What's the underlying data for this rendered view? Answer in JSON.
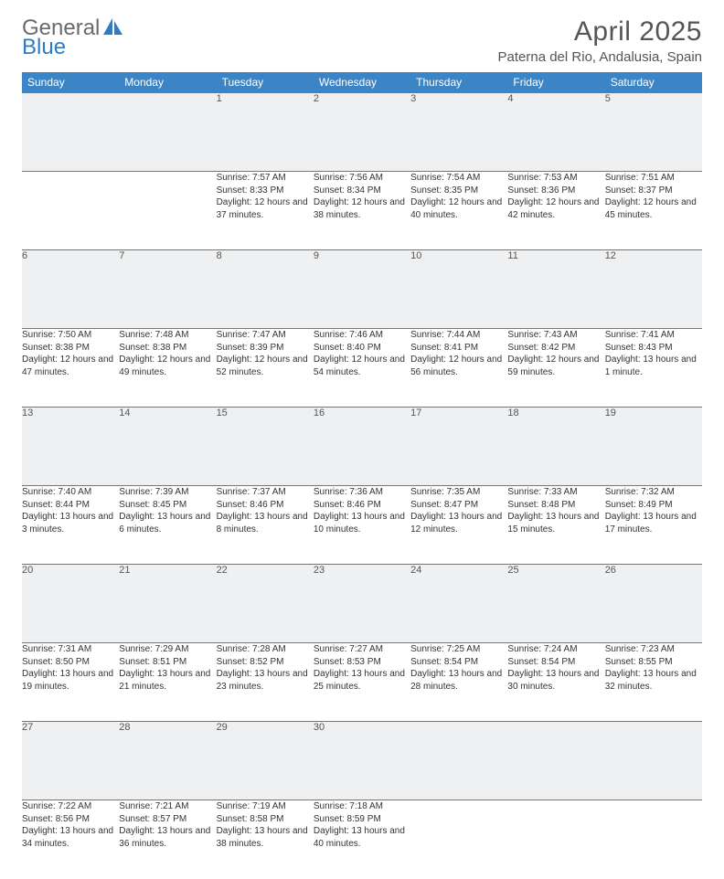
{
  "brand": {
    "word1": "General",
    "word2": "Blue"
  },
  "title": "April 2025",
  "location": "Paterna del Rio, Andalusia, Spain",
  "colors": {
    "header_bg": "#3b85c6",
    "header_text": "#ffffff",
    "daynum_bg": "#eef0f2",
    "rule": "#3b85c6",
    "body_bg": "#ffffff"
  },
  "weekdays": [
    "Sunday",
    "Monday",
    "Tuesday",
    "Wednesday",
    "Thursday",
    "Friday",
    "Saturday"
  ],
  "weeks": [
    [
      null,
      null,
      {
        "n": "1",
        "sr": "7:57 AM",
        "ss": "8:33 PM",
        "dl": "12 hours and 37 minutes."
      },
      {
        "n": "2",
        "sr": "7:56 AM",
        "ss": "8:34 PM",
        "dl": "12 hours and 38 minutes."
      },
      {
        "n": "3",
        "sr": "7:54 AM",
        "ss": "8:35 PM",
        "dl": "12 hours and 40 minutes."
      },
      {
        "n": "4",
        "sr": "7:53 AM",
        "ss": "8:36 PM",
        "dl": "12 hours and 42 minutes."
      },
      {
        "n": "5",
        "sr": "7:51 AM",
        "ss": "8:37 PM",
        "dl": "12 hours and 45 minutes."
      }
    ],
    [
      {
        "n": "6",
        "sr": "7:50 AM",
        "ss": "8:38 PM",
        "dl": "12 hours and 47 minutes."
      },
      {
        "n": "7",
        "sr": "7:48 AM",
        "ss": "8:38 PM",
        "dl": "12 hours and 49 minutes."
      },
      {
        "n": "8",
        "sr": "7:47 AM",
        "ss": "8:39 PM",
        "dl": "12 hours and 52 minutes."
      },
      {
        "n": "9",
        "sr": "7:46 AM",
        "ss": "8:40 PM",
        "dl": "12 hours and 54 minutes."
      },
      {
        "n": "10",
        "sr": "7:44 AM",
        "ss": "8:41 PM",
        "dl": "12 hours and 56 minutes."
      },
      {
        "n": "11",
        "sr": "7:43 AM",
        "ss": "8:42 PM",
        "dl": "12 hours and 59 minutes."
      },
      {
        "n": "12",
        "sr": "7:41 AM",
        "ss": "8:43 PM",
        "dl": "13 hours and 1 minute."
      }
    ],
    [
      {
        "n": "13",
        "sr": "7:40 AM",
        "ss": "8:44 PM",
        "dl": "13 hours and 3 minutes."
      },
      {
        "n": "14",
        "sr": "7:39 AM",
        "ss": "8:45 PM",
        "dl": "13 hours and 6 minutes."
      },
      {
        "n": "15",
        "sr": "7:37 AM",
        "ss": "8:46 PM",
        "dl": "13 hours and 8 minutes."
      },
      {
        "n": "16",
        "sr": "7:36 AM",
        "ss": "8:46 PM",
        "dl": "13 hours and 10 minutes."
      },
      {
        "n": "17",
        "sr": "7:35 AM",
        "ss": "8:47 PM",
        "dl": "13 hours and 12 minutes."
      },
      {
        "n": "18",
        "sr": "7:33 AM",
        "ss": "8:48 PM",
        "dl": "13 hours and 15 minutes."
      },
      {
        "n": "19",
        "sr": "7:32 AM",
        "ss": "8:49 PM",
        "dl": "13 hours and 17 minutes."
      }
    ],
    [
      {
        "n": "20",
        "sr": "7:31 AM",
        "ss": "8:50 PM",
        "dl": "13 hours and 19 minutes."
      },
      {
        "n": "21",
        "sr": "7:29 AM",
        "ss": "8:51 PM",
        "dl": "13 hours and 21 minutes."
      },
      {
        "n": "22",
        "sr": "7:28 AM",
        "ss": "8:52 PM",
        "dl": "13 hours and 23 minutes."
      },
      {
        "n": "23",
        "sr": "7:27 AM",
        "ss": "8:53 PM",
        "dl": "13 hours and 25 minutes."
      },
      {
        "n": "24",
        "sr": "7:25 AM",
        "ss": "8:54 PM",
        "dl": "13 hours and 28 minutes."
      },
      {
        "n": "25",
        "sr": "7:24 AM",
        "ss": "8:54 PM",
        "dl": "13 hours and 30 minutes."
      },
      {
        "n": "26",
        "sr": "7:23 AM",
        "ss": "8:55 PM",
        "dl": "13 hours and 32 minutes."
      }
    ],
    [
      {
        "n": "27",
        "sr": "7:22 AM",
        "ss": "8:56 PM",
        "dl": "13 hours and 34 minutes."
      },
      {
        "n": "28",
        "sr": "7:21 AM",
        "ss": "8:57 PM",
        "dl": "13 hours and 36 minutes."
      },
      {
        "n": "29",
        "sr": "7:19 AM",
        "ss": "8:58 PM",
        "dl": "13 hours and 38 minutes."
      },
      {
        "n": "30",
        "sr": "7:18 AM",
        "ss": "8:59 PM",
        "dl": "13 hours and 40 minutes."
      },
      null,
      null,
      null
    ]
  ],
  "labels": {
    "sunrise": "Sunrise:",
    "sunset": "Sunset:",
    "daylight": "Daylight:"
  }
}
